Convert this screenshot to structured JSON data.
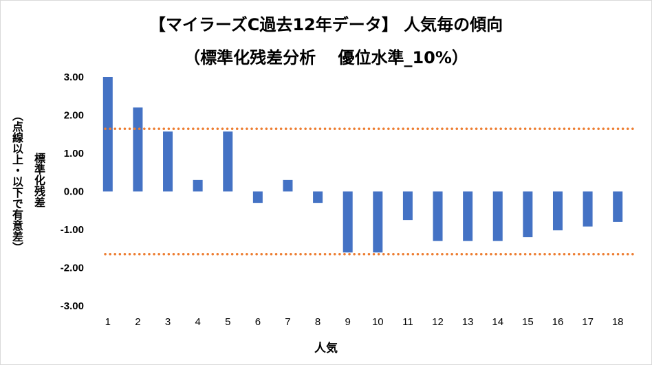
{
  "chart_data": {
    "type": "bar",
    "title": "【マイラーズC過去12年データ】 人気毎の傾向",
    "subtitle": "（標準化残差分析　 優位水準_10%）",
    "xlabel": "人気",
    "ylabel": "標準化残差",
    "ylabel_note": "（点線以上・以下で有意差）",
    "categories": [
      "1",
      "2",
      "3",
      "4",
      "5",
      "6",
      "7",
      "8",
      "9",
      "10",
      "11",
      "12",
      "13",
      "14",
      "15",
      "16",
      "17",
      "18"
    ],
    "values": [
      3.0,
      2.2,
      1.57,
      0.3,
      1.57,
      -0.3,
      0.3,
      -0.3,
      -1.6,
      -1.6,
      -0.75,
      -1.3,
      -1.3,
      -1.3,
      -1.2,
      -1.02,
      -0.92,
      -0.8
    ],
    "yticks": [
      "3.00",
      "2.00",
      "1.00",
      "0.00",
      "-1.00",
      "-2.00",
      "-3.00"
    ],
    "ylim": [
      -3,
      3
    ],
    "reference_lines": [
      1.645,
      -1.645
    ],
    "colors": {
      "bar": "#4472C4",
      "reference": "#ED7D31"
    },
    "grid": false,
    "legend": "none"
  }
}
